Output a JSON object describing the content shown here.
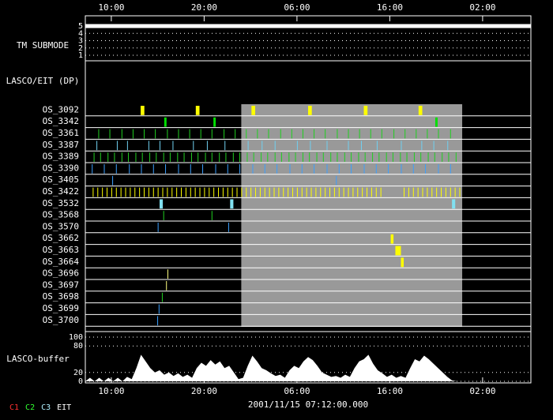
{
  "time_axis": {
    "xlim": [
      0,
      48
    ],
    "ticks": [
      {
        "value": 2.8,
        "label": "10:00"
      },
      {
        "value": 12.8,
        "label": "20:00"
      },
      {
        "value": 22.8,
        "label": "06:00"
      },
      {
        "value": 32.8,
        "label": "16:00"
      },
      {
        "value": 42.8,
        "label": "02:00"
      }
    ]
  },
  "date": "2001/11/15 07:12:00.000",
  "highlight": [
    16.8,
    40.6
  ],
  "tm_submode": {
    "label": "TM SUBMODE",
    "ylim": [
      1,
      5
    ],
    "yticks": [
      1,
      2,
      3,
      4,
      5
    ],
    "times": [
      0,
      48
    ],
    "values": [
      5,
      5
    ]
  },
  "section_label": "LASCO/EIT (DP)",
  "rows": [
    {
      "name": "OS_3092",
      "color": "#ffff00",
      "duration": 0.4,
      "times": [
        5.96,
        11.9,
        17.9,
        24.0,
        30.0,
        35.9
      ]
    },
    {
      "name": "OS_3342",
      "color": "#00e000",
      "duration": 0.25,
      "times": [
        8.5,
        13.8,
        37.7
      ]
    },
    {
      "name": "OS_3361",
      "color": "#20d020",
      "times": [
        1.4,
        2.6,
        3.9,
        5.1,
        6.3,
        7.5,
        8.8,
        10.0,
        11.2,
        12.4,
        13.6,
        14.9,
        16.1,
        17.3,
        18.5,
        19.7,
        21.0,
        22.2,
        23.4,
        24.6,
        25.8,
        27.1,
        28.3,
        29.5,
        30.7,
        31.9,
        33.2,
        34.4,
        35.6,
        36.8,
        38.0,
        39.3
      ]
    },
    {
      "name": "OS_3387",
      "color": "#70d0f0",
      "times": [
        1.2,
        3.4,
        4.5,
        6.8,
        8.0,
        9.4,
        11.6,
        13.1,
        15.0,
        17.5,
        19.0,
        20.4,
        22.8,
        24.2,
        26.0,
        28.3,
        29.7,
        31.4,
        34.0,
        36.2,
        37.5,
        39.0
      ]
    },
    {
      "name": "OS_3389",
      "color": "#20d020",
      "times": [
        0.9,
        1.6,
        2.4,
        3.1,
        3.9,
        4.6,
        5.4,
        6.1,
        6.9,
        7.6,
        8.4,
        9.1,
        9.9,
        10.6,
        11.4,
        12.1,
        12.9,
        13.6,
        14.4,
        15.1,
        15.9,
        16.6,
        17.4,
        18.1,
        18.9,
        19.6,
        20.4,
        21.1,
        21.9,
        22.6,
        23.4,
        24.1,
        24.9,
        25.6,
        26.4,
        27.1,
        27.9,
        28.6,
        29.4,
        30.1,
        30.9,
        31.6,
        32.4,
        33.1,
        33.9,
        34.6,
        35.4,
        36.1,
        36.9,
        37.6,
        38.4,
        39.1,
        39.9
      ]
    },
    {
      "name": "OS_3390",
      "color": "#3aa0ff",
      "times": [
        0.7,
        2.0,
        3.3,
        4.7,
        6.0,
        7.3,
        8.6,
        10.0,
        11.3,
        12.6,
        14.0,
        15.3,
        16.6,
        18.0,
        19.3,
        20.6,
        22.0,
        23.3,
        24.6,
        26.0,
        27.3,
        28.6,
        30.0,
        31.3,
        32.6,
        34.0,
        35.3,
        36.6,
        38.0,
        39.3
      ]
    },
    {
      "name": "OS_3405",
      "color": "#3aa0ff",
      "times": [
        2.9,
        27.0
      ]
    },
    {
      "name": "OS_3422",
      "color": "#ffff00",
      "times": [
        0.8,
        1.3,
        1.8,
        2.3,
        2.8,
        3.3,
        3.8,
        4.3,
        4.8,
        5.3,
        5.8,
        6.3,
        6.8,
        7.3,
        7.8,
        8.3,
        8.8,
        9.3,
        9.8,
        10.3,
        10.8,
        11.3,
        11.8,
        12.3,
        12.8,
        13.3,
        13.8,
        14.3,
        14.8,
        15.3,
        15.8,
        16.3,
        16.8,
        17.3,
        17.8,
        18.3,
        18.8,
        19.3,
        19.8,
        20.3,
        20.8,
        21.3,
        21.8,
        22.3,
        22.8,
        23.3,
        23.8,
        24.3,
        24.8,
        25.3,
        25.8,
        26.3,
        26.8,
        27.3,
        27.8,
        28.3,
        28.8,
        29.3,
        29.8,
        30.3,
        30.8,
        31.3,
        31.8,
        34.3,
        34.8,
        35.3,
        35.8,
        36.3,
        36.8,
        37.3,
        37.8,
        38.3,
        38.8,
        39.3,
        39.8,
        40.3
      ]
    },
    {
      "name": "OS_3532",
      "color": "#80e0f0",
      "duration": 0.35,
      "times": [
        8.0,
        15.6,
        39.5
      ]
    },
    {
      "name": "OS_3568",
      "color": "#20d020",
      "times": [
        8.4,
        13.6
      ]
    },
    {
      "name": "OS_3570",
      "color": "#3aa0ff",
      "times": [
        7.8,
        15.4
      ]
    },
    {
      "name": "OS_3662",
      "color": "#ffff00",
      "duration": 0.3,
      "times": [
        32.9
      ]
    },
    {
      "name": "OS_3663",
      "color": "#ffff00",
      "duration": 0.3,
      "times": [
        33.4,
        33.7
      ]
    },
    {
      "name": "OS_3664",
      "color": "#ffff00",
      "duration": 0.3,
      "times": [
        34.0
      ]
    },
    {
      "name": "OS_3696",
      "color": "#ffff80",
      "times": [
        8.85
      ]
    },
    {
      "name": "OS_3697",
      "color": "#ffff80",
      "times": [
        8.7
      ]
    },
    {
      "name": "OS_3698",
      "color": "#20d020",
      "times": [
        8.25
      ]
    },
    {
      "name": "OS_3699",
      "color": "#3aa0ff",
      "times": [
        7.9
      ]
    },
    {
      "name": "OS_3700",
      "color": "#3aa0ff",
      "times": [
        7.75
      ]
    }
  ],
  "buffer": {
    "label": "LASCO-buffer",
    "ylim": [
      0,
      100
    ],
    "yticks": [
      0,
      20,
      80,
      100
    ],
    "times": [
      0,
      0.5,
      1,
      1.5,
      2,
      2.5,
      3,
      3.5,
      4,
      4.5,
      5,
      5.5,
      6,
      6.5,
      7,
      7.5,
      8,
      8.5,
      9,
      9.5,
      10,
      10.5,
      11,
      11.5,
      12,
      12.5,
      13,
      13.5,
      14,
      14.5,
      15,
      15.5,
      16,
      16.5,
      17,
      17.5,
      18,
      18.5,
      19,
      19.5,
      20,
      20.5,
      21,
      21.5,
      22,
      22.5,
      23,
      23.5,
      24,
      24.5,
      25,
      25.5,
      26,
      26.5,
      27,
      27.5,
      28,
      28.5,
      29,
      29.5,
      30,
      30.5,
      31,
      31.5,
      32,
      32.5,
      33,
      33.5,
      34,
      34.5,
      35,
      35.5,
      36,
      36.5,
      37,
      37.5,
      38,
      38.5,
      39,
      39.5,
      40,
      48
    ],
    "values": [
      0,
      8,
      0,
      8,
      0,
      8,
      0,
      8,
      0,
      10,
      5,
      30,
      60,
      45,
      30,
      20,
      25,
      15,
      20,
      12,
      18,
      10,
      15,
      8,
      30,
      42,
      35,
      48,
      38,
      45,
      30,
      35,
      20,
      5,
      8,
      35,
      58,
      45,
      30,
      25,
      18,
      12,
      15,
      8,
      25,
      35,
      30,
      45,
      55,
      48,
      35,
      20,
      15,
      10,
      12,
      8,
      15,
      10,
      30,
      45,
      50,
      60,
      40,
      25,
      18,
      10,
      15,
      8,
      12,
      8,
      30,
      50,
      45,
      58,
      50,
      40,
      30,
      20,
      10,
      2,
      0,
      0
    ]
  },
  "legend": [
    {
      "name": "C1",
      "color": "#ff3030"
    },
    {
      "name": "C2",
      "color": "#30ff30"
    },
    {
      "name": "C3",
      "color": "#b0f0ff"
    },
    {
      "name": "EIT",
      "color": "#ffffff"
    }
  ]
}
